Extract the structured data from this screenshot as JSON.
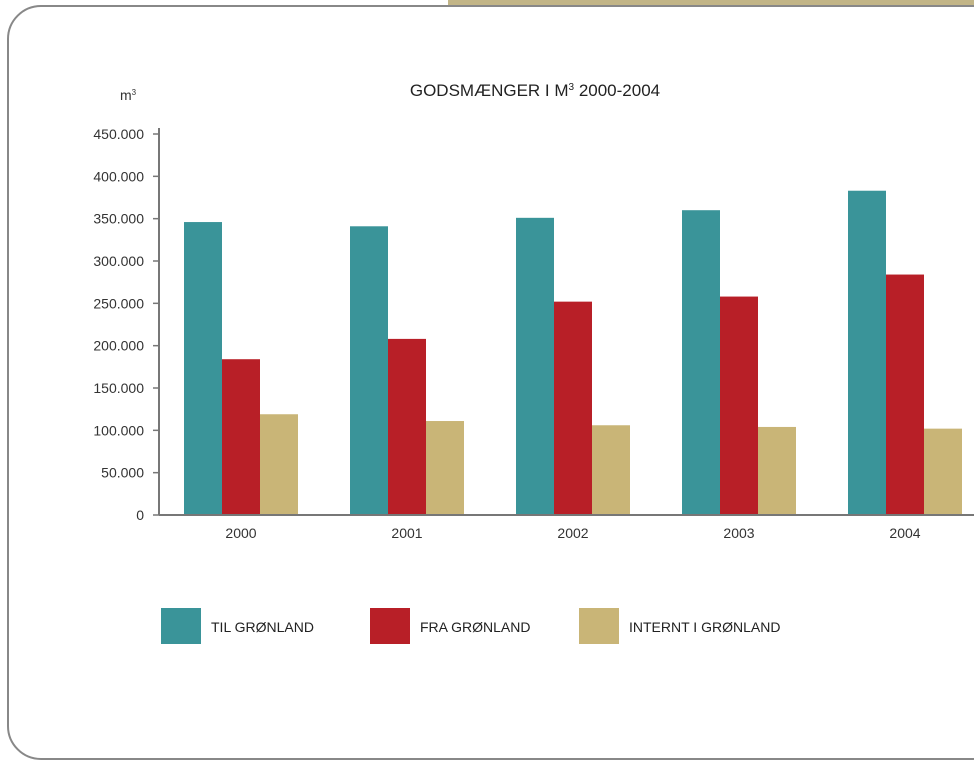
{
  "chart_data": {
    "type": "bar",
    "title": "GODSMÆNGER I M",
    "title_sup": "3",
    "title_suffix": " 2000-2004",
    "ylabel": "m",
    "ylabel_sup": "3",
    "xlabel": "",
    "categories": [
      "2000",
      "2001",
      "2002",
      "2003",
      "2004"
    ],
    "ylim": [
      0,
      450000
    ],
    "yticks": [
      0,
      50000,
      100000,
      150000,
      200000,
      250000,
      300000,
      350000,
      400000,
      450000
    ],
    "ytick_labels": [
      "0",
      "50.000",
      "100.000",
      "150.000",
      "200.000",
      "250.000",
      "300.000",
      "350.000",
      "400.000",
      "450.000"
    ],
    "grid": false,
    "legend_position": "bottom",
    "series": [
      {
        "name": "TIL  GRØNLAND",
        "color": "#3a9499",
        "values": [
          346000,
          341000,
          351000,
          360000,
          383000
        ]
      },
      {
        "name": "FRA GRØNLAND",
        "color": "#b81f27",
        "values": [
          184000,
          208000,
          252000,
          258000,
          284000
        ]
      },
      {
        "name": "INTERNT I GRØNLAND",
        "color": "#c9b577",
        "values": [
          119000,
          111000,
          106000,
          104000,
          102000
        ]
      }
    ]
  }
}
